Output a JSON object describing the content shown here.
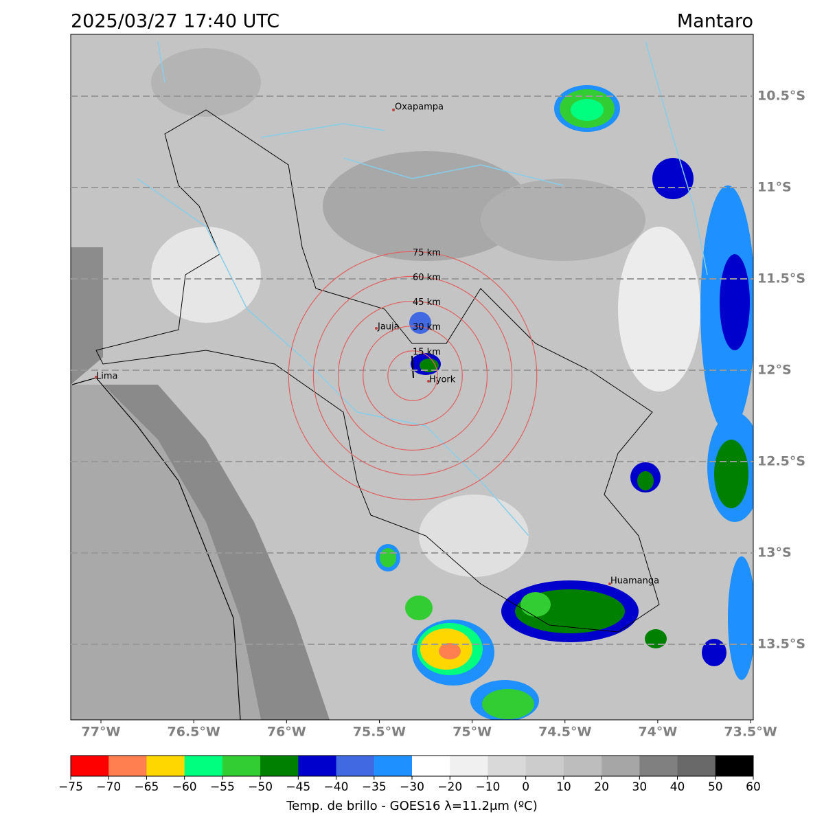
{
  "header": {
    "title": "2025/03/27 17:40 UTC",
    "region": "Mantaro"
  },
  "map": {
    "lat_ticks": [
      {
        "value": -10.5,
        "label": "10.5°S"
      },
      {
        "value": -11,
        "label": "11°S"
      },
      {
        "value": -11.5,
        "label": "11.5°S"
      },
      {
        "value": -12,
        "label": "12°S"
      },
      {
        "value": -12.5,
        "label": "12.5°S"
      },
      {
        "value": -13,
        "label": "13°S"
      },
      {
        "value": -13.5,
        "label": "13.5°S"
      }
    ],
    "lon_ticks": [
      {
        "value": -77,
        "label": "77°W"
      },
      {
        "value": -76.5,
        "label": "76.5°W"
      },
      {
        "value": -76,
        "label": "76°W"
      },
      {
        "value": -75.5,
        "label": "75.5°W"
      },
      {
        "value": -75,
        "label": "75°W"
      },
      {
        "value": -74.5,
        "label": "74.5°W"
      },
      {
        "value": -74,
        "label": "74°W"
      },
      {
        "value": -73.5,
        "label": "73.5°W"
      }
    ],
    "places": [
      "Oxapampa",
      "Jauja",
      "Hyork",
      "Lima",
      "Huamanga"
    ],
    "rings": [
      {
        "value": 15,
        "label": "15 km"
      },
      {
        "value": 30,
        "label": "30 km"
      },
      {
        "value": 45,
        "label": "45 km"
      },
      {
        "value": 60,
        "label": "60 km"
      },
      {
        "value": 75,
        "label": "75 km"
      }
    ]
  },
  "colorbar": {
    "label": "Temp. de brillo - GOES16 λ=11.2μm (ºC)",
    "ticks": [
      {
        "value": -75,
        "label": "−75"
      },
      {
        "value": -70,
        "label": "−70"
      },
      {
        "value": -65,
        "label": "−65"
      },
      {
        "value": -60,
        "label": "−60"
      },
      {
        "value": -55,
        "label": "−55"
      },
      {
        "value": -50,
        "label": "−50"
      },
      {
        "value": -45,
        "label": "−45"
      },
      {
        "value": -40,
        "label": "−40"
      },
      {
        "value": -35,
        "label": "−35"
      },
      {
        "value": -30,
        "label": "−30"
      },
      {
        "value": -20,
        "label": "−20"
      },
      {
        "value": -10,
        "label": "−10"
      },
      0,
      10,
      20,
      30,
      40,
      50,
      60
    ],
    "colors": [
      "#ff0000",
      "#ff7f50",
      "#ffd700",
      "#00ff7f",
      "#32cd32",
      "#008000",
      "#0000cd",
      "#4169e1",
      "#1e90ff",
      "#ffffff",
      "#f0f0f0",
      "#d9d9d9",
      "#cccccc",
      "#bdbdbd",
      "#a6a6a6",
      "#808080",
      "#696969",
      "#000000"
    ]
  }
}
